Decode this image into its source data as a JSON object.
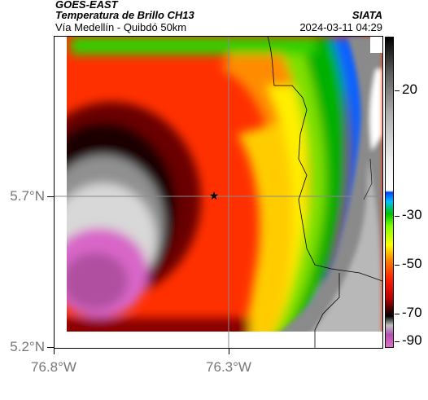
{
  "header": {
    "satellite": "GOES-EAST",
    "product": "Temperatura de Brillo CH13",
    "region": "Vía Medellín - Quibdó 50km",
    "organization": "SIATA",
    "timestamp": "2024-03-11 04:29"
  },
  "map": {
    "lat_labels": [
      "5.7°N",
      "5.2°N"
    ],
    "lon_labels": [
      "76.8°W",
      "76.3°W"
    ],
    "marker": "star-icon"
  },
  "colorbar": {
    "labels": [
      "20",
      "-30",
      "-50",
      "-70",
      "-90"
    ],
    "values": [
      20,
      -30,
      -50,
      -70,
      -90
    ],
    "range": [
      -95,
      35
    ],
    "colors": [
      "#e070c8",
      "#c0c0c0",
      "#000000",
      "#c00000",
      "#ff2000",
      "#ff8000",
      "#ffff00",
      "#80ff00",
      "#00c000",
      "#00c0ff",
      "#0040ff",
      "#ffffff",
      "#808080",
      "#000000"
    ]
  }
}
